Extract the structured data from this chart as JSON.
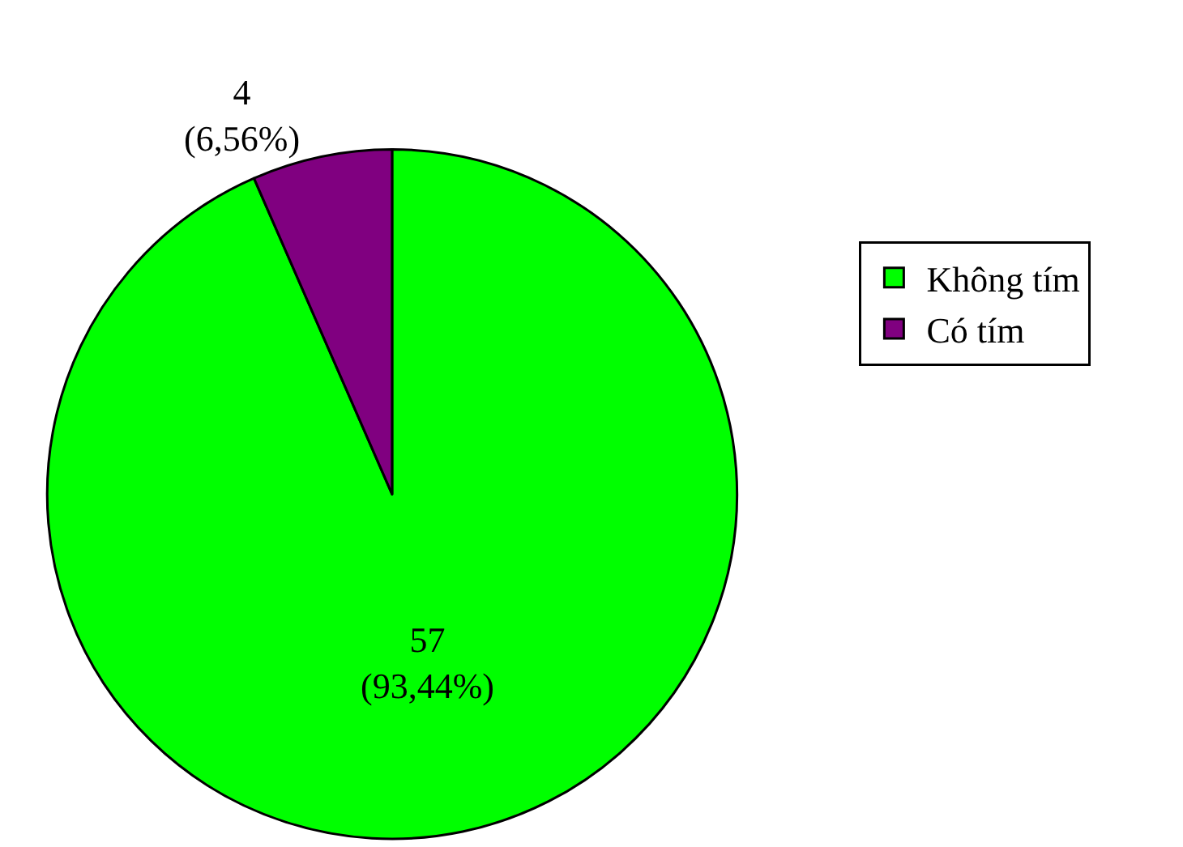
{
  "chart_data": {
    "type": "pie",
    "categories": [
      "Không tím",
      "Có tím"
    ],
    "values": [
      57,
      4
    ],
    "colors": [
      "#00ff00",
      "#800080"
    ],
    "value_labels": [
      "57\n(93,44%)",
      "4\n(6,56%)"
    ],
    "legend": "right"
  }
}
